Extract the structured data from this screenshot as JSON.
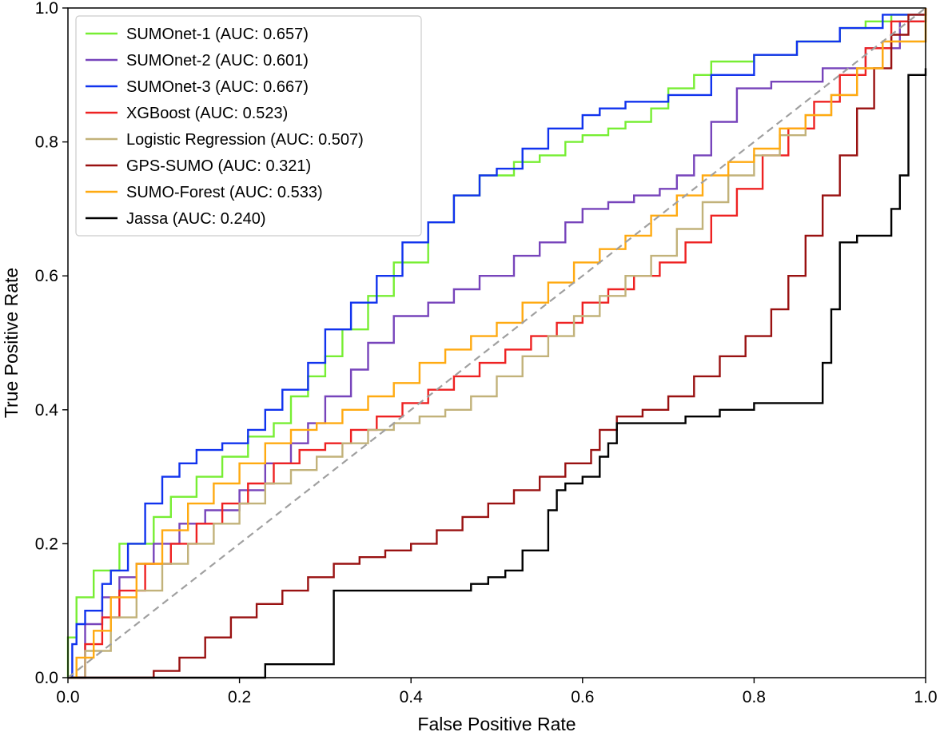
{
  "chart_data": {
    "type": "line",
    "xlabel": "False Positive Rate",
    "ylabel": "True Positive Rate",
    "xlim": [
      0.0,
      1.0
    ],
    "ylim": [
      0.0,
      1.0
    ],
    "xticks": [
      "0.0",
      "0.2",
      "0.4",
      "0.6",
      "0.8",
      "1.0"
    ],
    "yticks": [
      "0.0",
      "0.2",
      "0.4",
      "0.6",
      "0.8",
      "1.0"
    ],
    "grid": false,
    "legend_position": "top-left",
    "reference_line": {
      "x": [
        0,
        1
      ],
      "y": [
        0,
        1
      ],
      "style": "dashed",
      "color": "#a0a0a0"
    },
    "series": [
      {
        "name": "SUMOnet-1 (AUC: 0.657)",
        "color": "#77ee33",
        "x": [
          0,
          0,
          0.01,
          0.01,
          0.03,
          0.03,
          0.06,
          0.06,
          0.1,
          0.12,
          0.15,
          0.18,
          0.21,
          0.24,
          0.26,
          0.28,
          0.3,
          0.32,
          0.35,
          0.38,
          0.42,
          0.45,
          0.48,
          0.52,
          0.55,
          0.58,
          0.6,
          0.63,
          0.65,
          0.68,
          0.7,
          0.73,
          0.75,
          0.8,
          0.85,
          0.9,
          0.93,
          0.96,
          1.0
        ],
        "y": [
          0,
          0.06,
          0.06,
          0.12,
          0.12,
          0.16,
          0.17,
          0.2,
          0.24,
          0.27,
          0.3,
          0.33,
          0.36,
          0.38,
          0.42,
          0.45,
          0.48,
          0.52,
          0.57,
          0.62,
          0.68,
          0.72,
          0.75,
          0.77,
          0.78,
          0.8,
          0.81,
          0.82,
          0.83,
          0.85,
          0.88,
          0.9,
          0.92,
          0.93,
          0.95,
          0.97,
          0.98,
          0.99,
          1.0
        ]
      },
      {
        "name": "SUMOnet-2 (AUC: 0.601)",
        "color": "#7744bb",
        "x": [
          0,
          0.02,
          0.04,
          0.06,
          0.08,
          0.1,
          0.13,
          0.16,
          0.2,
          0.23,
          0.26,
          0.28,
          0.3,
          0.33,
          0.35,
          0.38,
          0.42,
          0.45,
          0.48,
          0.52,
          0.55,
          0.58,
          0.6,
          0.63,
          0.66,
          0.69,
          0.71,
          0.73,
          0.75,
          0.78,
          0.82,
          0.88,
          0.93,
          0.97,
          1.0
        ],
        "y": [
          0,
          0.08,
          0.12,
          0.15,
          0.17,
          0.2,
          0.23,
          0.25,
          0.28,
          0.32,
          0.35,
          0.38,
          0.42,
          0.46,
          0.5,
          0.54,
          0.56,
          0.58,
          0.6,
          0.63,
          0.65,
          0.68,
          0.7,
          0.71,
          0.72,
          0.73,
          0.75,
          0.78,
          0.83,
          0.88,
          0.89,
          0.91,
          0.94,
          0.98,
          1.0
        ]
      },
      {
        "name": "SUMOnet-3 (AUC: 0.667)",
        "color": "#1133ee",
        "x": [
          0,
          0.005,
          0.01,
          0.02,
          0.04,
          0.05,
          0.07,
          0.09,
          0.11,
          0.13,
          0.15,
          0.18,
          0.21,
          0.23,
          0.25,
          0.28,
          0.3,
          0.33,
          0.36,
          0.39,
          0.42,
          0.45,
          0.48,
          0.5,
          0.53,
          0.56,
          0.6,
          0.62,
          0.65,
          0.68,
          0.7,
          0.75,
          0.8,
          0.85,
          0.9,
          0.95,
          1.0
        ],
        "y": [
          0,
          0.05,
          0.08,
          0.1,
          0.14,
          0.16,
          0.2,
          0.26,
          0.3,
          0.32,
          0.34,
          0.35,
          0.37,
          0.4,
          0.43,
          0.47,
          0.52,
          0.56,
          0.6,
          0.65,
          0.68,
          0.72,
          0.75,
          0.76,
          0.79,
          0.82,
          0.84,
          0.85,
          0.86,
          0.86,
          0.87,
          0.9,
          0.93,
          0.95,
          0.97,
          0.99,
          1.0
        ]
      },
      {
        "name": "XGBoost (AUC: 0.523)",
        "color": "#ee2222",
        "x": [
          0,
          0.02,
          0.04,
          0.06,
          0.09,
          0.12,
          0.15,
          0.18,
          0.21,
          0.24,
          0.27,
          0.3,
          0.33,
          0.36,
          0.39,
          0.42,
          0.45,
          0.48,
          0.51,
          0.54,
          0.57,
          0.6,
          0.63,
          0.66,
          0.69,
          0.72,
          0.75,
          0.78,
          0.81,
          0.84,
          0.87,
          0.9,
          0.93,
          0.96,
          1.0
        ],
        "y": [
          0,
          0.05,
          0.09,
          0.13,
          0.17,
          0.2,
          0.23,
          0.26,
          0.29,
          0.32,
          0.34,
          0.35,
          0.37,
          0.39,
          0.41,
          0.43,
          0.45,
          0.47,
          0.49,
          0.51,
          0.53,
          0.56,
          0.58,
          0.6,
          0.62,
          0.65,
          0.69,
          0.73,
          0.78,
          0.82,
          0.86,
          0.9,
          0.94,
          0.98,
          1.0
        ]
      },
      {
        "name": "Logistic Regression (AUC: 0.507)",
        "color": "#c2b27a",
        "x": [
          0,
          0.02,
          0.05,
          0.08,
          0.11,
          0.14,
          0.17,
          0.2,
          0.23,
          0.26,
          0.29,
          0.32,
          0.35,
          0.38,
          0.41,
          0.44,
          0.47,
          0.5,
          0.53,
          0.56,
          0.59,
          0.62,
          0.65,
          0.68,
          0.71,
          0.74,
          0.77,
          0.8,
          0.83,
          0.86,
          0.89,
          0.92,
          0.95,
          1.0
        ],
        "y": [
          0,
          0.04,
          0.09,
          0.13,
          0.17,
          0.2,
          0.23,
          0.26,
          0.29,
          0.31,
          0.33,
          0.35,
          0.37,
          0.38,
          0.39,
          0.4,
          0.42,
          0.45,
          0.48,
          0.51,
          0.54,
          0.57,
          0.6,
          0.63,
          0.67,
          0.71,
          0.75,
          0.78,
          0.81,
          0.84,
          0.87,
          0.91,
          0.95,
          1.0
        ]
      },
      {
        "name": "GPS-SUMO (AUC: 0.321)",
        "color": "#991111",
        "x": [
          0,
          0.08,
          0.1,
          0.13,
          0.16,
          0.19,
          0.22,
          0.25,
          0.28,
          0.31,
          0.34,
          0.37,
          0.4,
          0.43,
          0.46,
          0.49,
          0.52,
          0.55,
          0.58,
          0.61,
          0.62,
          0.64,
          0.67,
          0.7,
          0.73,
          0.76,
          0.79,
          0.82,
          0.84,
          0.86,
          0.88,
          0.9,
          0.92,
          0.94,
          0.96,
          0.98,
          1.0
        ],
        "y": [
          0,
          0.0,
          0.01,
          0.03,
          0.06,
          0.09,
          0.11,
          0.13,
          0.15,
          0.17,
          0.18,
          0.19,
          0.2,
          0.22,
          0.24,
          0.26,
          0.28,
          0.3,
          0.32,
          0.34,
          0.37,
          0.39,
          0.4,
          0.42,
          0.45,
          0.48,
          0.51,
          0.55,
          0.6,
          0.66,
          0.72,
          0.78,
          0.85,
          0.91,
          0.96,
          0.99,
          1.0
        ]
      },
      {
        "name": "SUMO-Forest (AUC: 0.533)",
        "color": "#ffaa11",
        "x": [
          0,
          0.01,
          0.03,
          0.05,
          0.08,
          0.11,
          0.14,
          0.17,
          0.2,
          0.23,
          0.26,
          0.29,
          0.32,
          0.35,
          0.38,
          0.41,
          0.44,
          0.47,
          0.5,
          0.53,
          0.56,
          0.59,
          0.62,
          0.65,
          0.68,
          0.71,
          0.74,
          0.77,
          0.8,
          0.83,
          0.86,
          0.89,
          0.92,
          0.95,
          1.0
        ],
        "y": [
          0,
          0.03,
          0.07,
          0.12,
          0.17,
          0.22,
          0.26,
          0.29,
          0.32,
          0.35,
          0.37,
          0.38,
          0.4,
          0.42,
          0.44,
          0.47,
          0.49,
          0.51,
          0.53,
          0.56,
          0.59,
          0.62,
          0.64,
          0.66,
          0.69,
          0.72,
          0.75,
          0.77,
          0.79,
          0.82,
          0.84,
          0.87,
          0.91,
          0.95,
          1.0
        ]
      },
      {
        "name": "Jassa (AUC: 0.240)",
        "color": "#000000",
        "x": [
          0,
          0.21,
          0.23,
          0.23,
          0.3,
          0.31,
          0.31,
          0.46,
          0.47,
          0.49,
          0.51,
          0.53,
          0.53,
          0.56,
          0.56,
          0.57,
          0.58,
          0.6,
          0.62,
          0.63,
          0.64,
          0.64,
          0.68,
          0.72,
          0.76,
          0.8,
          0.84,
          0.87,
          0.88,
          0.88,
          0.89,
          0.89,
          0.9,
          0.9,
          0.92,
          0.93,
          0.95,
          0.96,
          0.97,
          0.98,
          1.0
        ],
        "y": [
          0,
          0.0,
          0.01,
          0.02,
          0.02,
          0.02,
          0.13,
          0.13,
          0.14,
          0.15,
          0.16,
          0.17,
          0.19,
          0.19,
          0.25,
          0.28,
          0.29,
          0.3,
          0.33,
          0.35,
          0.37,
          0.38,
          0.38,
          0.39,
          0.4,
          0.41,
          0.41,
          0.41,
          0.41,
          0.47,
          0.5,
          0.55,
          0.6,
          0.65,
          0.66,
          0.66,
          0.66,
          0.7,
          0.75,
          0.9,
          0.91
        ]
      }
    ]
  }
}
